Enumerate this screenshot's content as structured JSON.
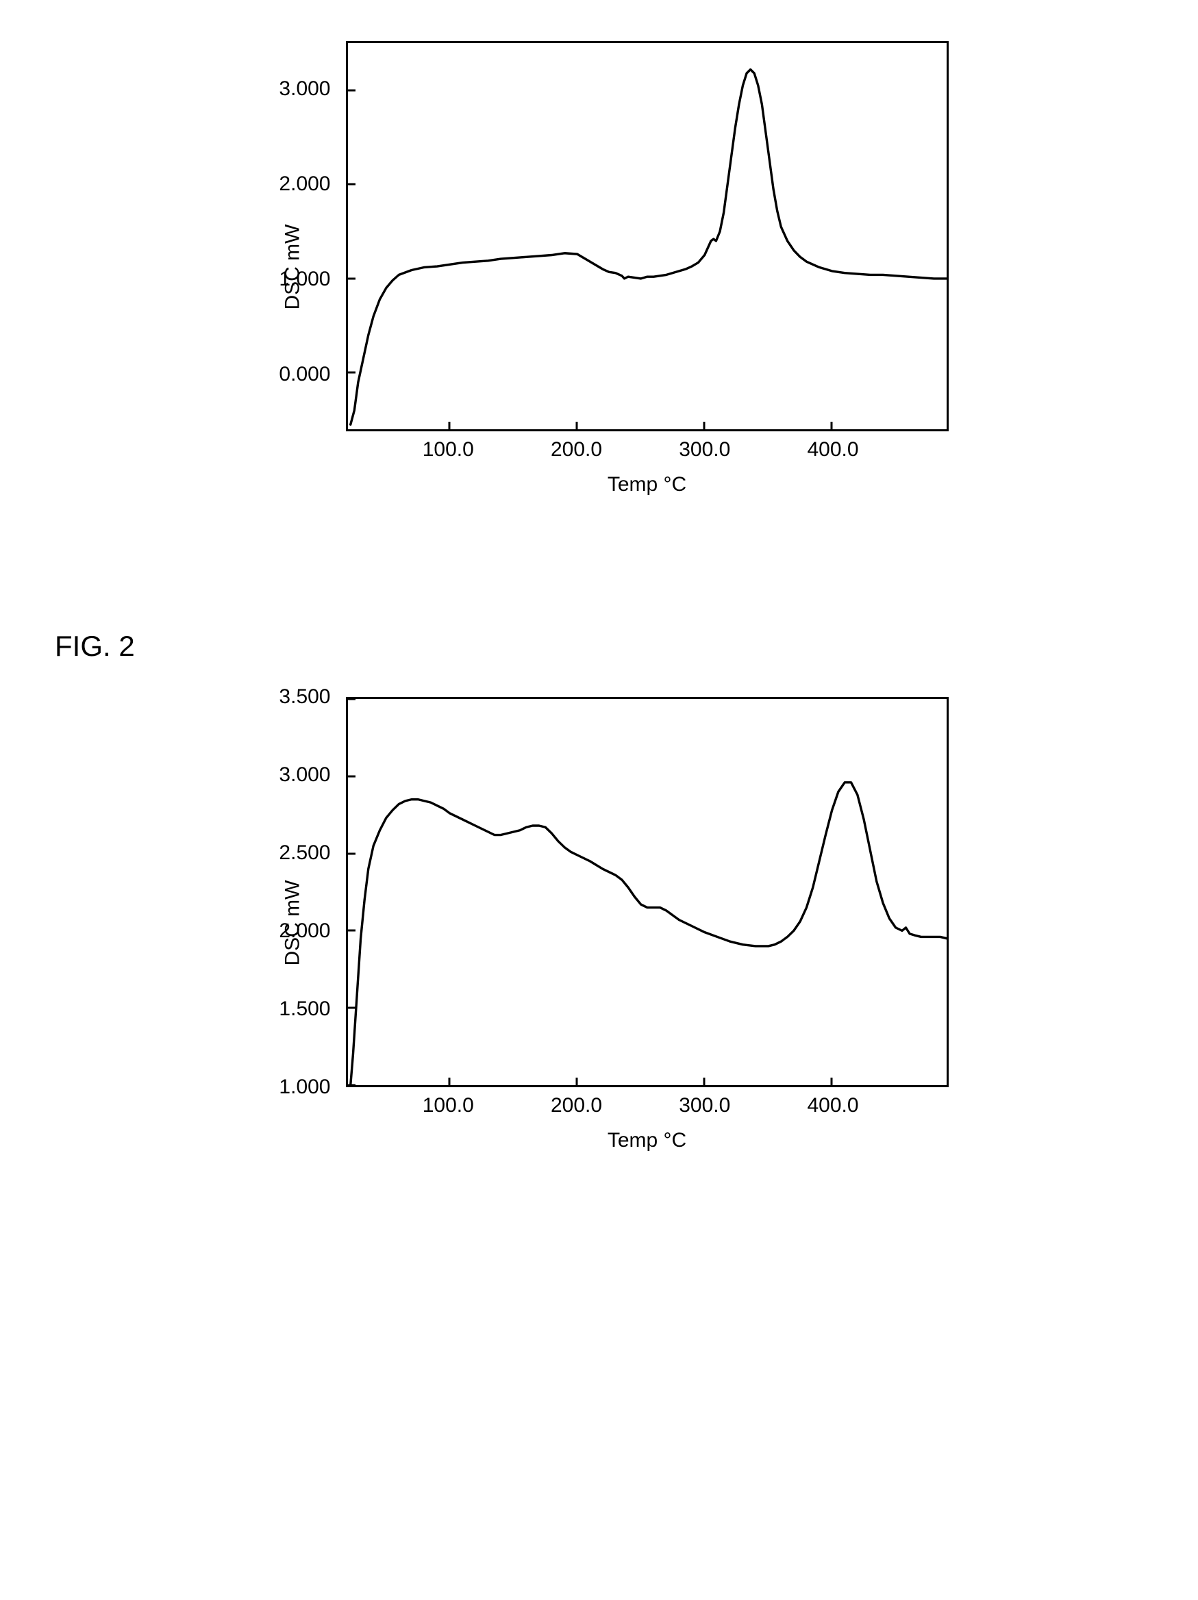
{
  "figures": {
    "fig2_label": "FIG. 2"
  },
  "chart1": {
    "type": "line",
    "x_label": "Temp °C",
    "y_label": "DSC mW",
    "x_min": 20,
    "x_max": 490,
    "y_min": -0.6,
    "y_max": 3.5,
    "x_ticks": [
      100.0,
      200.0,
      300.0,
      400.0
    ],
    "x_tick_labels": [
      "100.0",
      "200.0",
      "300.0",
      "400.0"
    ],
    "y_ticks": [
      0.0,
      1.0,
      2.0,
      3.0
    ],
    "y_tick_labels": [
      "0.000",
      "1.000",
      "2.000",
      "3.000"
    ],
    "line_color": "#000000",
    "line_width": 3,
    "data": [
      [
        22,
        -0.55
      ],
      [
        25,
        -0.4
      ],
      [
        28,
        -0.1
      ],
      [
        32,
        0.15
      ],
      [
        36,
        0.4
      ],
      [
        40,
        0.6
      ],
      [
        45,
        0.78
      ],
      [
        50,
        0.9
      ],
      [
        55,
        0.98
      ],
      [
        60,
        1.04
      ],
      [
        70,
        1.09
      ],
      [
        80,
        1.12
      ],
      [
        90,
        1.13
      ],
      [
        100,
        1.15
      ],
      [
        110,
        1.17
      ],
      [
        120,
        1.18
      ],
      [
        130,
        1.19
      ],
      [
        140,
        1.21
      ],
      [
        150,
        1.22
      ],
      [
        160,
        1.23
      ],
      [
        170,
        1.24
      ],
      [
        180,
        1.25
      ],
      [
        190,
        1.27
      ],
      [
        200,
        1.26
      ],
      [
        205,
        1.22
      ],
      [
        210,
        1.18
      ],
      [
        215,
        1.14
      ],
      [
        220,
        1.1
      ],
      [
        225,
        1.07
      ],
      [
        230,
        1.06
      ],
      [
        235,
        1.03
      ],
      [
        237,
        1.0
      ],
      [
        240,
        1.02
      ],
      [
        245,
        1.01
      ],
      [
        250,
        1.0
      ],
      [
        255,
        1.02
      ],
      [
        260,
        1.02
      ],
      [
        265,
        1.03
      ],
      [
        270,
        1.04
      ],
      [
        275,
        1.06
      ],
      [
        280,
        1.08
      ],
      [
        285,
        1.1
      ],
      [
        290,
        1.13
      ],
      [
        295,
        1.17
      ],
      [
        300,
        1.25
      ],
      [
        305,
        1.4
      ],
      [
        307,
        1.42
      ],
      [
        309,
        1.4
      ],
      [
        312,
        1.5
      ],
      [
        315,
        1.7
      ],
      [
        318,
        2.0
      ],
      [
        321,
        2.3
      ],
      [
        324,
        2.6
      ],
      [
        327,
        2.85
      ],
      [
        330,
        3.05
      ],
      [
        333,
        3.18
      ],
      [
        336,
        3.22
      ],
      [
        339,
        3.18
      ],
      [
        342,
        3.05
      ],
      [
        345,
        2.85
      ],
      [
        348,
        2.55
      ],
      [
        351,
        2.25
      ],
      [
        354,
        1.95
      ],
      [
        357,
        1.72
      ],
      [
        360,
        1.55
      ],
      [
        365,
        1.4
      ],
      [
        370,
        1.3
      ],
      [
        375,
        1.23
      ],
      [
        380,
        1.18
      ],
      [
        390,
        1.12
      ],
      [
        400,
        1.08
      ],
      [
        410,
        1.06
      ],
      [
        420,
        1.05
      ],
      [
        430,
        1.04
      ],
      [
        440,
        1.04
      ],
      [
        450,
        1.03
      ],
      [
        460,
        1.02
      ],
      [
        470,
        1.01
      ],
      [
        480,
        1.0
      ],
      [
        490,
        1.0
      ]
    ]
  },
  "chart2": {
    "type": "line",
    "x_label": "Temp °C",
    "y_label": "DSC mW",
    "x_min": 20,
    "x_max": 490,
    "y_min": 1.0,
    "y_max": 3.5,
    "x_ticks": [
      100.0,
      200.0,
      300.0,
      400.0
    ],
    "x_tick_labels": [
      "100.0",
      "200.0",
      "300.0",
      "400.0"
    ],
    "y_ticks": [
      1.0,
      1.5,
      2.0,
      2.5,
      3.0,
      3.5
    ],
    "y_tick_labels": [
      "1.000",
      "1.500",
      "2.000",
      "2.500",
      "3.000",
      "3.500"
    ],
    "line_color": "#000000",
    "line_width": 3,
    "data": [
      [
        22,
        1.0
      ],
      [
        24,
        1.2
      ],
      [
        26,
        1.45
      ],
      [
        28,
        1.7
      ],
      [
        30,
        1.95
      ],
      [
        33,
        2.2
      ],
      [
        36,
        2.4
      ],
      [
        40,
        2.55
      ],
      [
        45,
        2.65
      ],
      [
        50,
        2.73
      ],
      [
        55,
        2.78
      ],
      [
        60,
        2.82
      ],
      [
        65,
        2.84
      ],
      [
        70,
        2.85
      ],
      [
        75,
        2.85
      ],
      [
        80,
        2.84
      ],
      [
        85,
        2.83
      ],
      [
        90,
        2.81
      ],
      [
        95,
        2.79
      ],
      [
        100,
        2.76
      ],
      [
        110,
        2.72
      ],
      [
        120,
        2.68
      ],
      [
        130,
        2.64
      ],
      [
        135,
        2.62
      ],
      [
        140,
        2.62
      ],
      [
        145,
        2.63
      ],
      [
        150,
        2.64
      ],
      [
        155,
        2.65
      ],
      [
        160,
        2.67
      ],
      [
        165,
        2.68
      ],
      [
        170,
        2.68
      ],
      [
        175,
        2.67
      ],
      [
        180,
        2.63
      ],
      [
        185,
        2.58
      ],
      [
        190,
        2.54
      ],
      [
        195,
        2.51
      ],
      [
        200,
        2.49
      ],
      [
        210,
        2.45
      ],
      [
        220,
        2.4
      ],
      [
        230,
        2.36
      ],
      [
        235,
        2.33
      ],
      [
        240,
        2.28
      ],
      [
        245,
        2.22
      ],
      [
        250,
        2.17
      ],
      [
        255,
        2.15
      ],
      [
        260,
        2.15
      ],
      [
        265,
        2.15
      ],
      [
        270,
        2.13
      ],
      [
        275,
        2.1
      ],
      [
        280,
        2.07
      ],
      [
        290,
        2.03
      ],
      [
        300,
        1.99
      ],
      [
        310,
        1.96
      ],
      [
        320,
        1.93
      ],
      [
        330,
        1.91
      ],
      [
        340,
        1.9
      ],
      [
        350,
        1.9
      ],
      [
        355,
        1.91
      ],
      [
        360,
        1.93
      ],
      [
        365,
        1.96
      ],
      [
        370,
        2.0
      ],
      [
        375,
        2.06
      ],
      [
        380,
        2.15
      ],
      [
        385,
        2.28
      ],
      [
        390,
        2.45
      ],
      [
        395,
        2.62
      ],
      [
        400,
        2.78
      ],
      [
        405,
        2.9
      ],
      [
        410,
        2.96
      ],
      [
        415,
        2.96
      ],
      [
        420,
        2.88
      ],
      [
        425,
        2.72
      ],
      [
        430,
        2.52
      ],
      [
        435,
        2.32
      ],
      [
        440,
        2.18
      ],
      [
        445,
        2.08
      ],
      [
        450,
        2.02
      ],
      [
        455,
        2.0
      ],
      [
        458,
        2.02
      ],
      [
        461,
        1.98
      ],
      [
        465,
        1.97
      ],
      [
        470,
        1.96
      ],
      [
        475,
        1.96
      ],
      [
        480,
        1.96
      ],
      [
        485,
        1.96
      ],
      [
        490,
        1.95
      ]
    ]
  },
  "style": {
    "bg": "#ffffff",
    "border": "#000000",
    "tick_font_size": 30,
    "label_font_size": 30,
    "fig_label_font_size": 42
  }
}
